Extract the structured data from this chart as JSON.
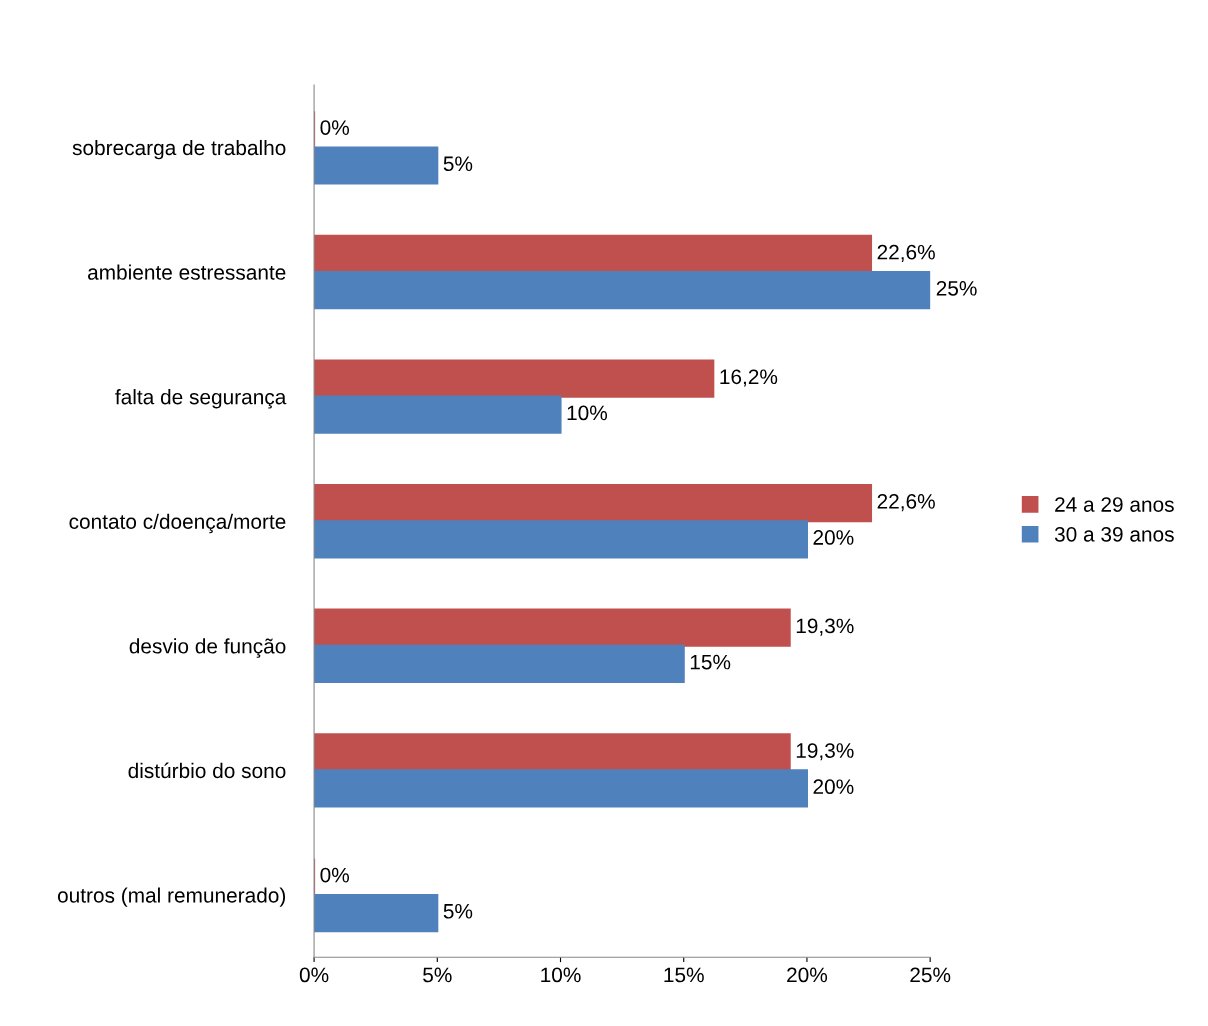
{
  "chart_data": {
    "type": "bar",
    "orientation": "horizontal",
    "categories": [
      "sobrecarga de trabalho",
      "ambiente estressante",
      "falta de segurança",
      "contato c/doença/morte",
      "desvio de função",
      "distúrbio do sono",
      "outros (mal remunerado)"
    ],
    "series": [
      {
        "name": "24 a 29 anos",
        "color": "#c0504d",
        "values": [
          0,
          22.6,
          16.2,
          22.6,
          19.3,
          19.3,
          0
        ],
        "value_labels": [
          "0%",
          "22,6%",
          "16,2%",
          "22,6%",
          "19,3%",
          "19,3%",
          "0%"
        ]
      },
      {
        "name": "30 a 39 anos",
        "color": "#4f81bd",
        "values": [
          5,
          25,
          10,
          20,
          15,
          20,
          5
        ],
        "value_labels": [
          "5%",
          "25%",
          "10%",
          "20%",
          "15%",
          "20%",
          "5%"
        ]
      }
    ],
    "xlim": [
      0,
      25
    ],
    "xticks": [
      {
        "value": 0,
        "label": "0%"
      },
      {
        "value": 5,
        "label": "5%"
      },
      {
        "value": 10,
        "label": "10%"
      },
      {
        "value": 15,
        "label": "15%"
      },
      {
        "value": 20,
        "label": "20%"
      },
      {
        "value": 25,
        "label": "25%"
      }
    ],
    "legend": "right",
    "grid": false
  }
}
